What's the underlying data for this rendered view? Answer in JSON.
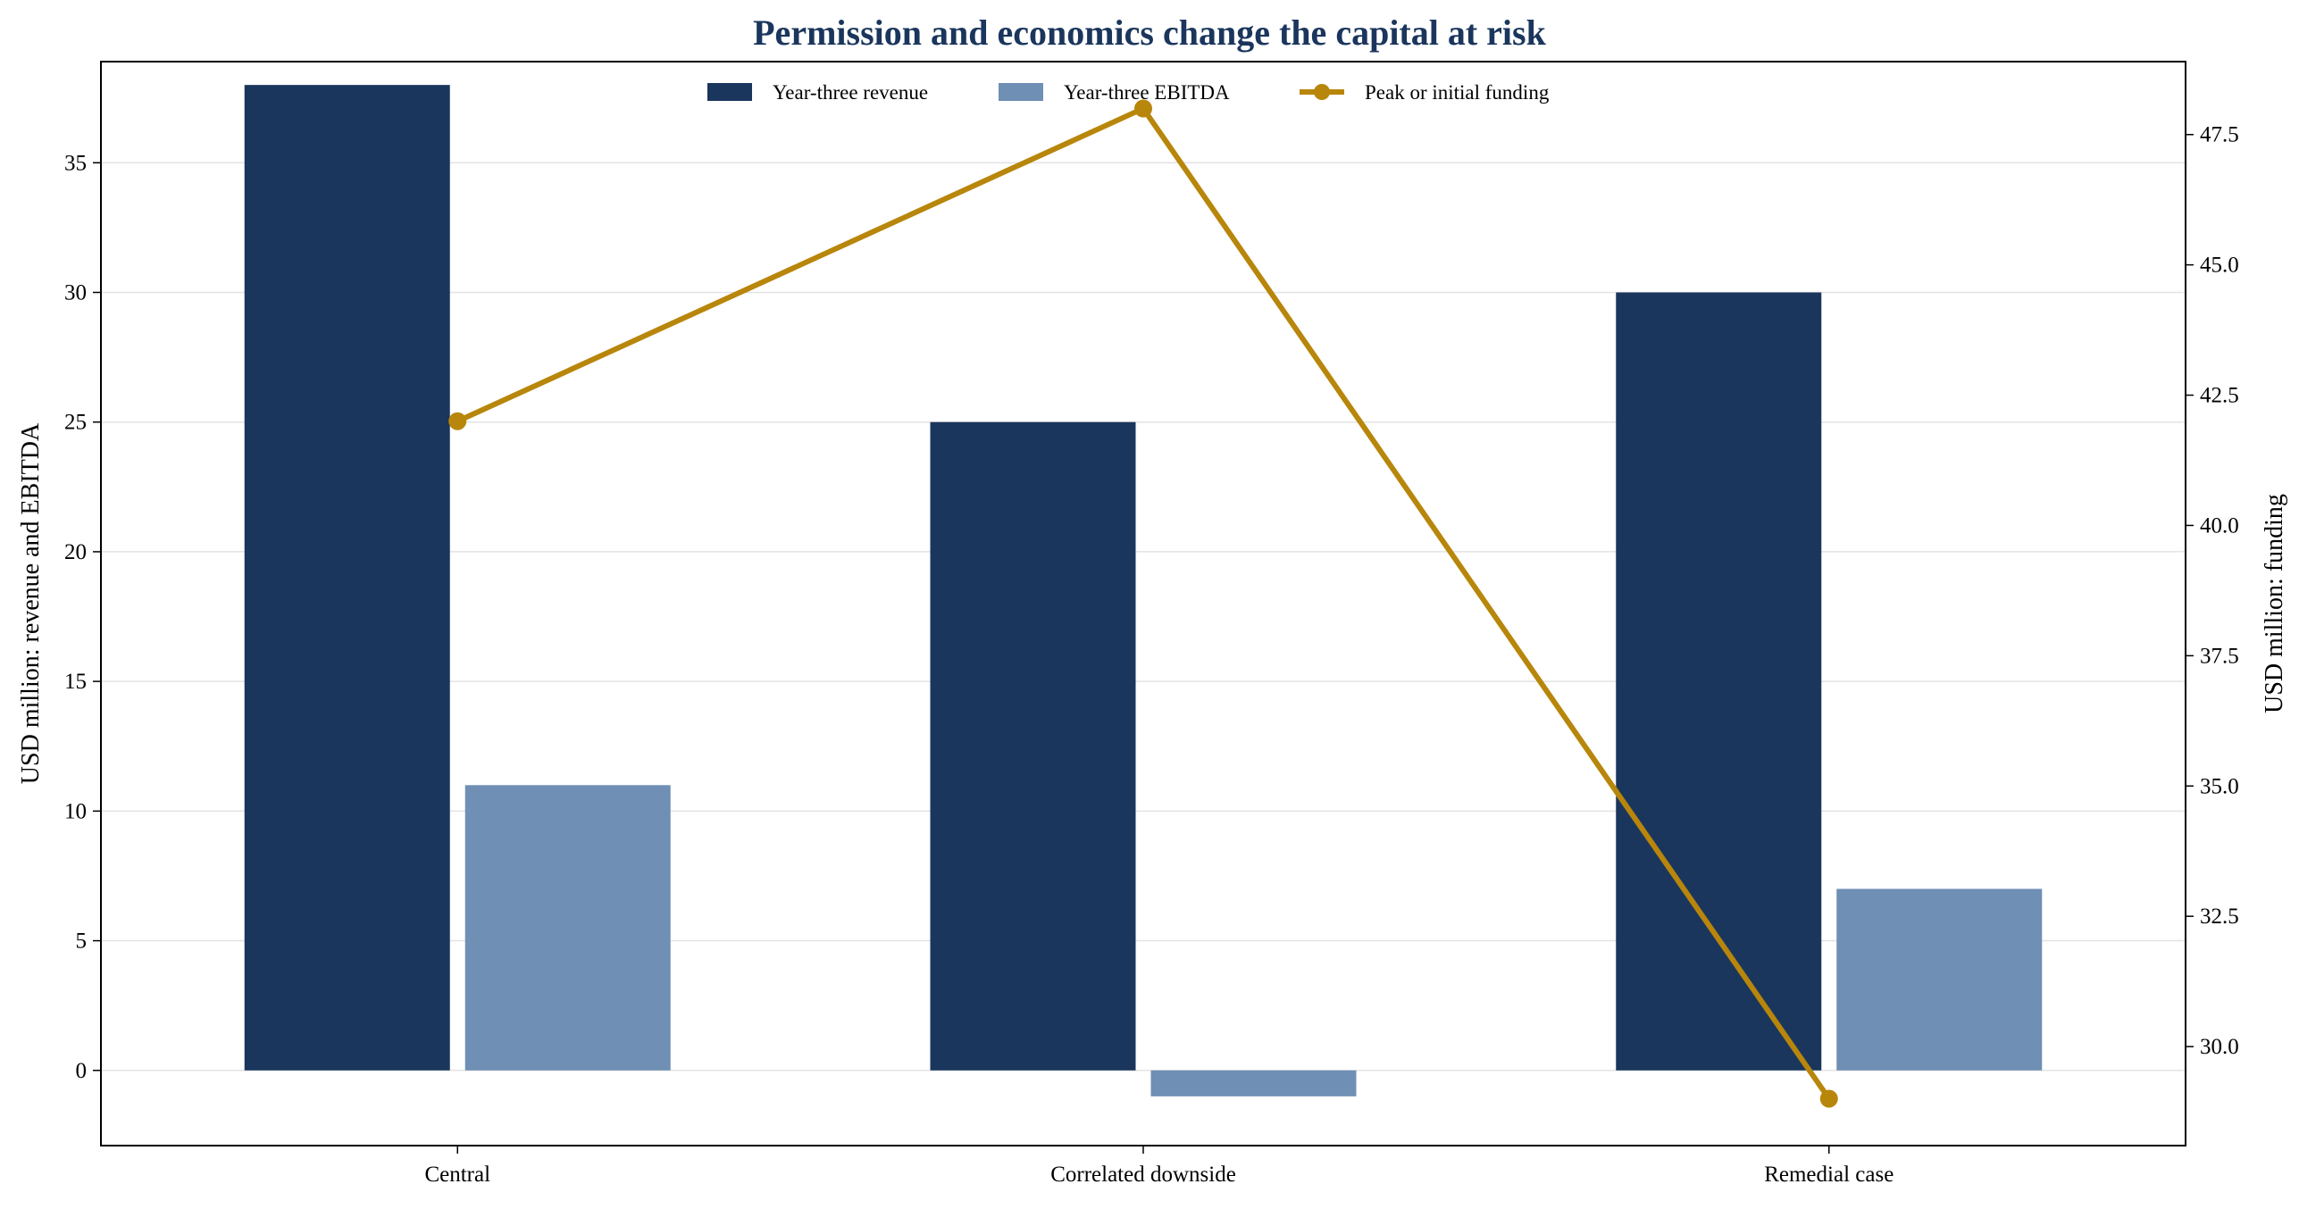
{
  "chart_data": {
    "type": "bar",
    "title": "Permission and economics change the capital at risk",
    "title_color": "#1b365d",
    "categories": [
      "Central",
      "Correlated downside",
      "Remedial case"
    ],
    "series": [
      {
        "name": "Year-three revenue",
        "type": "bar",
        "axis": "left",
        "color": "#1b365d",
        "values": [
          38,
          25,
          30
        ]
      },
      {
        "name": "Year-three EBITDA",
        "type": "bar",
        "axis": "left",
        "color": "#6f8fb4",
        "values": [
          11,
          -1,
          7
        ]
      },
      {
        "name": "Peak or initial funding",
        "type": "line",
        "axis": "right",
        "color": "#b8860b",
        "values": [
          42,
          48,
          29
        ]
      }
    ],
    "ylabel": "USD million: revenue and EBITDA",
    "y2label": "USD million: funding",
    "ylim": [
      -2.9,
      38.9
    ],
    "y2lim": [
      28.1,
      48.9
    ],
    "yticks": [
      0,
      5,
      10,
      15,
      20,
      25,
      30,
      35
    ],
    "y2ticks": [
      30.0,
      32.5,
      35.0,
      37.5,
      40.0,
      42.5,
      45.0,
      47.5
    ],
    "grid": true,
    "legend_position": "top-center"
  }
}
